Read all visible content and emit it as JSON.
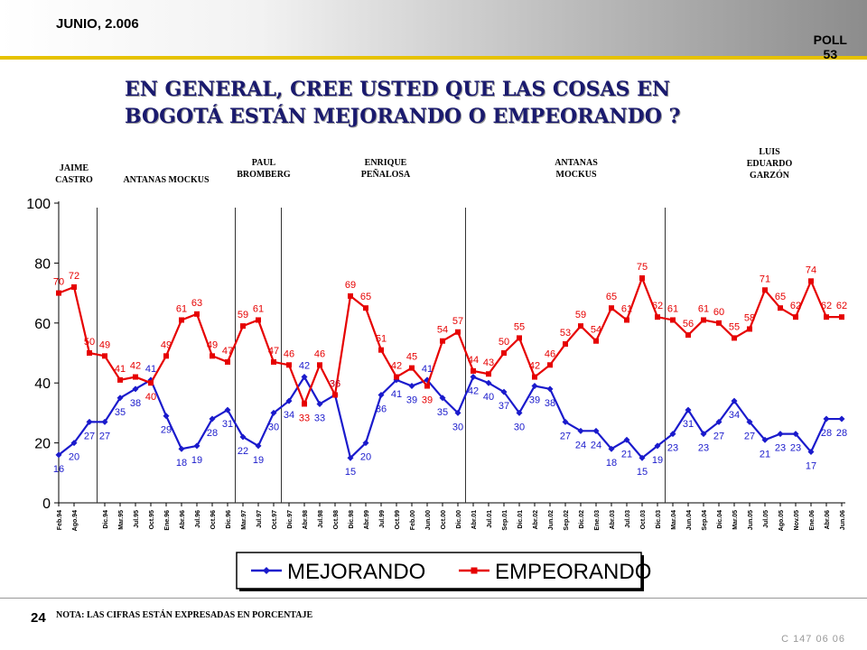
{
  "header": {
    "date": "JUNIO, 2.006",
    "poll_label": "POLL",
    "poll_number": "53"
  },
  "question": {
    "line1": "EN GENERAL,  CREE USTED  QUE LAS COSAS EN",
    "line2": "BOGOTÁ ESTÁN MEJORANDO O EMPEORANDO ?"
  },
  "mayors": [
    {
      "line1": "JAIME",
      "line2": "CASTRO",
      "line3": ""
    },
    {
      "line1": "ANTANAS MOCKUS",
      "line2": "",
      "line3": ""
    },
    {
      "line1": "PAUL",
      "line2": "BROMBERG",
      "line3": ""
    },
    {
      "line1": "ENRIQUE",
      "line2": "PEÑALOSA",
      "line3": ""
    },
    {
      "line1": "ANTANAS",
      "line2": "MOCKUS",
      "line3": ""
    },
    {
      "line1": "LUIS",
      "line2": "EDUARDO",
      "line3": "GARZÓN"
    }
  ],
  "footer": {
    "page_number": "24",
    "note": "NOTA: LAS CIFRAS ESTÁN EXPRESADAS EN PORCENTAJE",
    "code": "C 147 06 06"
  },
  "colors": {
    "mejorando": "#1a1acc",
    "empeorando": "#e60000",
    "axis": "#000000"
  },
  "chart_data": {
    "type": "line",
    "title": "EN GENERAL,  CREE USTED  QUE LAS COSAS EN BOGOTÁ ESTÁN MEJORANDO O EMPEORANDO ?",
    "xlabel": "",
    "ylabel": "",
    "ylim": [
      0,
      100
    ],
    "yticks": [
      0,
      20,
      40,
      60,
      80,
      100
    ],
    "grid": false,
    "legend_position": "bottom",
    "categories": [
      "Feb.94",
      "Ago.94",
      "Oct.94",
      "Dic.94",
      "Mar.95",
      "Jul.95",
      "Oct.95",
      "Ene.96",
      "Abr.96",
      "Jul.96",
      "Oct.96",
      "Dic.96",
      "Mar.97",
      "Jul.97",
      "Oct.97",
      "Dic.97",
      "Abr.98",
      "Jul.98",
      "Oct.98",
      "Dic.98",
      "Abr.99",
      "Jul.99",
      "Oct.99",
      "Feb.00",
      "Jun.00",
      "Oct.00",
      "Dic.00",
      "Abr.01",
      "Jul.01",
      "Sep.01",
      "Dic.01",
      "Abr.02",
      "Jun.02",
      "Sep.02",
      "Dic.02",
      "Ene.03",
      "Abr.03",
      "Jul.03",
      "Oct.03",
      "Dic.03",
      "Mar.04",
      "Jun.04",
      "Sep.04",
      "Dic.04",
      "Mar.05",
      "Jun.05",
      "Jul.05",
      "Ago.05",
      "Nov.05",
      "Ene.06",
      "Abr.06",
      "Jun.06"
    ],
    "tick_labels": [
      "Feb.94",
      "Ago.94",
      "Dic.94",
      "Mar.95",
      "Jul.95",
      "Oct.95",
      "Ene.96",
      "Abr.96",
      "Jul.96",
      "Oct.96",
      "Dic.96",
      "Mar.97",
      "Jul.97",
      "Oct.97",
      "Dic.97",
      "Abr.98",
      "Jul.98",
      "Oct.98",
      "Dic.98",
      "Abr.99",
      "Jul.99",
      "Oct.99",
      "Feb.00",
      "Jun.00",
      "Oct.00",
      "Dic.00",
      "Abr.01",
      "Jul.01",
      "Sep.01",
      "Dic.01",
      "Abr.02",
      "Jun.02",
      "Sep.02",
      "Dic.02",
      "Ene.03",
      "Abr.03",
      "Jul.03",
      "Oct.03",
      "Dic.03",
      "Mar.04",
      "Jun.04",
      "Sep.04",
      "Dic.04",
      "Mar.05",
      "Jun.05",
      "Jul.05",
      "Ago.05",
      "Nov.05",
      "Ene.06",
      "Abr.06",
      "Jun.06"
    ],
    "term_boundaries_after_index": [
      2,
      11,
      14,
      26,
      39
    ],
    "series": [
      {
        "name": "MEJORANDO",
        "values": [
          16,
          20,
          27,
          27,
          35,
          38,
          41,
          29,
          18,
          19,
          28,
          31,
          22,
          19,
          30,
          34,
          42,
          33,
          36,
          15,
          20,
          36,
          41,
          39,
          41,
          35,
          30,
          42,
          40,
          37,
          30,
          39,
          38,
          27,
          24,
          24,
          18,
          21,
          15,
          19,
          23,
          31,
          23,
          27,
          34,
          27,
          21,
          23,
          23,
          17,
          28,
          28
        ]
      },
      {
        "name": "EMPEORANDO",
        "values": [
          70,
          72,
          50,
          49,
          41,
          42,
          40,
          49,
          61,
          63,
          49,
          47,
          59,
          61,
          47,
          46,
          33,
          46,
          36,
          69,
          65,
          51,
          42,
          45,
          39,
          54,
          57,
          44,
          43,
          50,
          55,
          42,
          46,
          53,
          59,
          54,
          65,
          61,
          75,
          62,
          61,
          56,
          61,
          60,
          55,
          58,
          71,
          65,
          62,
          74,
          62,
          62
        ]
      }
    ]
  }
}
